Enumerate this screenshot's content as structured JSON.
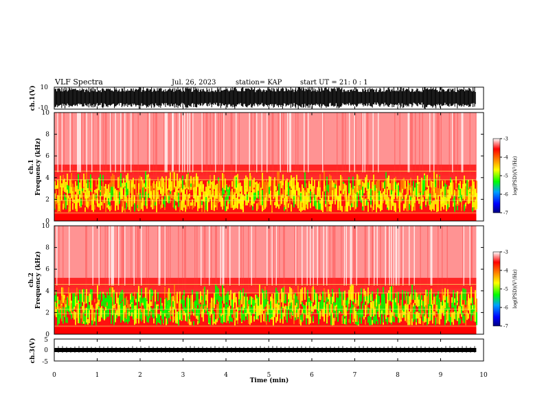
{
  "header": {
    "title": "VLF Spectra",
    "date": "Jul. 26, 2023",
    "station": "station= KAP",
    "start": "start UT = 21: 0 : 1"
  },
  "chart_data": [
    {
      "type": "line",
      "name": "ch1-waveform",
      "ylabel": "ch.1(V)",
      "ylim": [
        -10,
        10
      ],
      "y_ticks": [
        "10",
        "-10"
      ],
      "xlim": [
        0,
        10
      ]
    },
    {
      "type": "heatmap",
      "name": "ch1-spectrogram",
      "ylabel": "ch.1\nFrequency (kHz)",
      "ylim": [
        0,
        10
      ],
      "y_ticks": [
        "0",
        "2",
        "4",
        "6",
        "8",
        "10"
      ],
      "xlim": [
        0,
        10
      ],
      "colorbar": {
        "label": "log(PSD)(V²/Hz)",
        "range": [
          -7,
          -3
        ],
        "ticks": [
          "-3",
          "-4",
          "-5",
          "-6",
          "-7"
        ]
      }
    },
    {
      "type": "heatmap",
      "name": "ch2-spectrogram",
      "ylabel": "ch.2\nFrequency (kHz)",
      "ylim": [
        0,
        10
      ],
      "y_ticks": [
        "0",
        "2",
        "4",
        "6",
        "8",
        "10"
      ],
      "xlim": [
        0,
        10
      ],
      "colorbar": {
        "label": "log(PSD)(V²/Hz)",
        "range": [
          -7,
          -3
        ],
        "ticks": [
          "-3",
          "-4",
          "-5",
          "-6",
          "-7"
        ]
      }
    },
    {
      "type": "line",
      "name": "ch3-waveform",
      "ylabel": "ch.3(V)",
      "ylim": [
        -5,
        5
      ],
      "y_ticks": [
        "5",
        "0",
        "-5"
      ],
      "xlim": [
        0,
        10
      ]
    }
  ],
  "x_axis": {
    "label": "Time (min)",
    "ticks": [
      "0",
      "1",
      "2",
      "3",
      "4",
      "5",
      "6",
      "7",
      "8",
      "9",
      "10"
    ],
    "data_end": 9.83
  },
  "colors": {
    "spectrum": [
      "#000080",
      "#0000ff",
      "#00a0ff",
      "#00ff00",
      "#ffff00",
      "#ff8000",
      "#ff0000",
      "#ffffff"
    ],
    "background_red": "#ff2020",
    "axis": "#000000"
  }
}
